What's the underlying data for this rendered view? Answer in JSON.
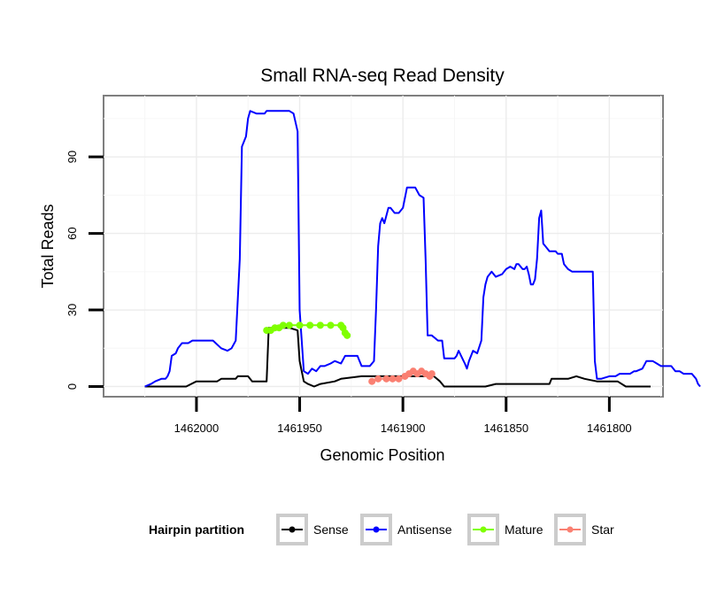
{
  "chart_data": {
    "type": "line",
    "title": "Small RNA-seq Read Density",
    "xlabel": "Genomic Position",
    "ylabel": "Total Reads",
    "xlim": [
      1462045,
      1461774
    ],
    "ylim": [
      -4,
      114
    ],
    "x_reversed": true,
    "x_ticks": [
      1462000,
      1461950,
      1461900,
      1461850,
      1461800
    ],
    "x_tick_labels": [
      "1462000",
      "1461950",
      "1461900",
      "1461850",
      "1461800"
    ],
    "y_ticks": [
      0,
      30,
      60,
      90
    ],
    "y_tick_labels": [
      "0",
      "30",
      "60",
      "90"
    ],
    "grid": true,
    "legend": {
      "title": "Hairpin partition",
      "position": "bottom",
      "entries": [
        "Sense",
        "Antisense",
        "Mature",
        "Star"
      ]
    },
    "series": [
      {
        "name": "Sense",
        "color": "#000000",
        "points": [
          [
            1462025,
            0
          ],
          [
            1462005,
            0
          ],
          [
            1462000,
            2
          ],
          [
            1461990,
            2
          ],
          [
            1461988,
            3
          ],
          [
            1461981,
            3
          ],
          [
            1461980,
            4
          ],
          [
            1461975,
            4
          ],
          [
            1461973,
            2
          ],
          [
            1461966,
            2
          ],
          [
            1461965,
            23
          ],
          [
            1461955,
            23
          ],
          [
            1461951,
            22
          ],
          [
            1461950,
            10
          ],
          [
            1461948,
            2
          ],
          [
            1461946,
            1
          ],
          [
            1461943,
            0
          ],
          [
            1461940,
            1
          ],
          [
            1461933,
            2
          ],
          [
            1461930,
            3
          ],
          [
            1461920,
            4
          ],
          [
            1461915,
            4
          ],
          [
            1461900,
            4
          ],
          [
            1461895,
            4
          ],
          [
            1461885,
            4
          ],
          [
            1461882,
            2
          ],
          [
            1461880,
            0
          ],
          [
            1461870,
            0
          ],
          [
            1461860,
            0
          ],
          [
            1461855,
            1
          ],
          [
            1461840,
            1
          ],
          [
            1461829,
            1
          ],
          [
            1461828,
            3
          ],
          [
            1461820,
            3
          ],
          [
            1461816,
            4
          ],
          [
            1461812,
            3
          ],
          [
            1461806,
            2
          ],
          [
            1461796,
            2
          ],
          [
            1461792,
            0
          ],
          [
            1461780,
            0
          ]
        ]
      },
      {
        "name": "Antisense",
        "color": "#0000ff",
        "points": [
          [
            1462025,
            0
          ],
          [
            1462022,
            1
          ],
          [
            1462020,
            2
          ],
          [
            1462017,
            3
          ],
          [
            1462015,
            3
          ],
          [
            1462014,
            4
          ],
          [
            1462013,
            6
          ],
          [
            1462012,
            12
          ],
          [
            1462010,
            13
          ],
          [
            1462009,
            15
          ],
          [
            1462007,
            17
          ],
          [
            1462004,
            17
          ],
          [
            1462002,
            18
          ],
          [
            1461992,
            18
          ],
          [
            1461988,
            15
          ],
          [
            1461985,
            14
          ],
          [
            1461983,
            15
          ],
          [
            1461981,
            18
          ],
          [
            1461979,
            50
          ],
          [
            1461978,
            94
          ],
          [
            1461976,
            98
          ],
          [
            1461975,
            105
          ],
          [
            1461974,
            108
          ],
          [
            1461971,
            107
          ],
          [
            1461967,
            107
          ],
          [
            1461966,
            108
          ],
          [
            1461960,
            108
          ],
          [
            1461955,
            108
          ],
          [
            1461953,
            107
          ],
          [
            1461951,
            100
          ],
          [
            1461950,
            30
          ],
          [
            1461948,
            6
          ],
          [
            1461946,
            5
          ],
          [
            1461944,
            7
          ],
          [
            1461942,
            6
          ],
          [
            1461940,
            8
          ],
          [
            1461938,
            8
          ],
          [
            1461935,
            9
          ],
          [
            1461933,
            10
          ],
          [
            1461930,
            9
          ],
          [
            1461928,
            12
          ],
          [
            1461926,
            12
          ],
          [
            1461922,
            12
          ],
          [
            1461920,
            8
          ],
          [
            1461916,
            8
          ],
          [
            1461914,
            10
          ],
          [
            1461913,
            30
          ],
          [
            1461912,
            55
          ],
          [
            1461911,
            64
          ],
          [
            1461910,
            66
          ],
          [
            1461909,
            64
          ],
          [
            1461907,
            70
          ],
          [
            1461906,
            70
          ],
          [
            1461904,
            68
          ],
          [
            1461902,
            68
          ],
          [
            1461900,
            70
          ],
          [
            1461898,
            78
          ],
          [
            1461894,
            78
          ],
          [
            1461892,
            75
          ],
          [
            1461890,
            74
          ],
          [
            1461889,
            50
          ],
          [
            1461888,
            20
          ],
          [
            1461886,
            20
          ],
          [
            1461883,
            18
          ],
          [
            1461881,
            18
          ],
          [
            1461880,
            11
          ],
          [
            1461875,
            11
          ],
          [
            1461874,
            12
          ],
          [
            1461873,
            14
          ],
          [
            1461870,
            9
          ],
          [
            1461869,
            7
          ],
          [
            1461868,
            10
          ],
          [
            1461866,
            14
          ],
          [
            1461864,
            13
          ],
          [
            1461862,
            18
          ],
          [
            1461861,
            35
          ],
          [
            1461860,
            40
          ],
          [
            1461859,
            43
          ],
          [
            1461857,
            45
          ],
          [
            1461855,
            43
          ],
          [
            1461852,
            44
          ],
          [
            1461850,
            46
          ],
          [
            1461848,
            47
          ],
          [
            1461846,
            46
          ],
          [
            1461845,
            48
          ],
          [
            1461844,
            48
          ],
          [
            1461842,
            46
          ],
          [
            1461841,
            46
          ],
          [
            1461840,
            47
          ],
          [
            1461839,
            44
          ],
          [
            1461838,
            40
          ],
          [
            1461837,
            40
          ],
          [
            1461836,
            42
          ],
          [
            1461835,
            50
          ],
          [
            1461834,
            66
          ],
          [
            1461833,
            69
          ],
          [
            1461832,
            56
          ],
          [
            1461831,
            55
          ],
          [
            1461829,
            53
          ],
          [
            1461826,
            53
          ],
          [
            1461825,
            52
          ],
          [
            1461823,
            52
          ],
          [
            1461822,
            48
          ],
          [
            1461820,
            46
          ],
          [
            1461818,
            45
          ],
          [
            1461811,
            45
          ],
          [
            1461808,
            45
          ],
          [
            1461807,
            10
          ],
          [
            1461806,
            3
          ],
          [
            1461804,
            3
          ],
          [
            1461800,
            4
          ],
          [
            1461797,
            4
          ],
          [
            1461795,
            5
          ],
          [
            1461790,
            5
          ],
          [
            1461788,
            6
          ],
          [
            1461787,
            6
          ],
          [
            1461784,
            7
          ],
          [
            1461782,
            10
          ],
          [
            1461779,
            10
          ],
          [
            1461777,
            9
          ],
          [
            1461775,
            8
          ],
          [
            1461770,
            8
          ],
          [
            1461768,
            6
          ],
          [
            1461766,
            6
          ],
          [
            1461764,
            5
          ],
          [
            1461760,
            5
          ],
          [
            1461758,
            3
          ],
          [
            1461757,
            1
          ],
          [
            1461756,
            0
          ]
        ]
      },
      {
        "name": "Mature",
        "color": "#7fff00",
        "points": [
          [
            1461966,
            22
          ],
          [
            1461964,
            22
          ],
          [
            1461962,
            23
          ],
          [
            1461960,
            23
          ],
          [
            1461958,
            24
          ],
          [
            1461955,
            24
          ],
          [
            1461950,
            24
          ],
          [
            1461945,
            24
          ],
          [
            1461940,
            24
          ],
          [
            1461935,
            24
          ],
          [
            1461930,
            24
          ],
          [
            1461929,
            23
          ],
          [
            1461928,
            21
          ],
          [
            1461927,
            20
          ]
        ]
      },
      {
        "name": "Star",
        "color": "#fa8072",
        "points": [
          [
            1461915,
            2
          ],
          [
            1461912,
            3
          ],
          [
            1461908,
            3
          ],
          [
            1461905,
            3
          ],
          [
            1461902,
            3
          ],
          [
            1461899,
            4
          ],
          [
            1461897,
            5
          ],
          [
            1461895,
            6
          ],
          [
            1461893,
            5
          ],
          [
            1461891,
            6
          ],
          [
            1461889,
            5
          ],
          [
            1461887,
            4
          ],
          [
            1461886,
            5
          ]
        ]
      }
    ]
  }
}
